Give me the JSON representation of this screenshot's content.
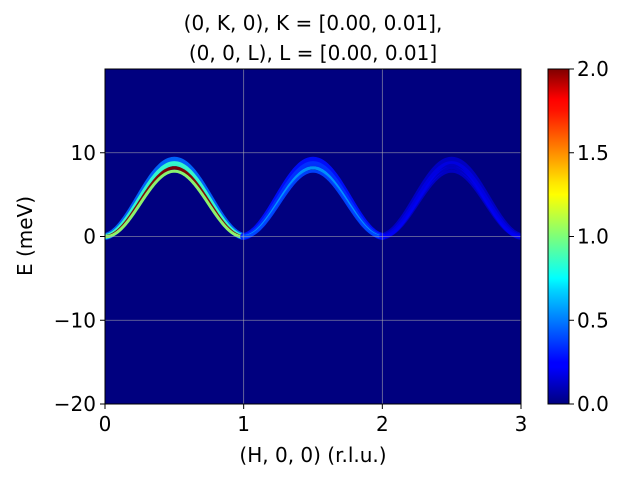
{
  "chart_data": {
    "type": "heatmap",
    "title_line1": "(0, K, 0), K = [0.00, 0.01],",
    "title_line2": "(0, 0, L), L = [0.00, 0.01]",
    "xlabel": "(H, 0, 0) (r.l.u.)",
    "ylabel": "E (meV)",
    "xlim": [
      0,
      3
    ],
    "ylim": [
      -20,
      20
    ],
    "x_ticks": [
      0,
      1,
      2,
      3
    ],
    "y_ticks": [
      -20,
      -10,
      0,
      10
    ],
    "grid": true,
    "background_color": "#00007f",
    "colorbar": {
      "range": [
        0.0,
        2.0
      ],
      "ticks": [
        "0.0",
        "0.5",
        "1.0",
        "1.5",
        "2.0"
      ],
      "colormap": "jet"
    },
    "dispersion": {
      "E_max_meV": 8.2,
      "period_rlu": 1.0,
      "branches": [
        {
          "H_range": [
            0,
            1
          ],
          "intensity_max": 2.0
        },
        {
          "H_range": [
            1,
            2
          ],
          "intensity_max": 0.55
        },
        {
          "H_range": [
            2,
            3
          ],
          "intensity_max": 0.15
        }
      ]
    }
  }
}
